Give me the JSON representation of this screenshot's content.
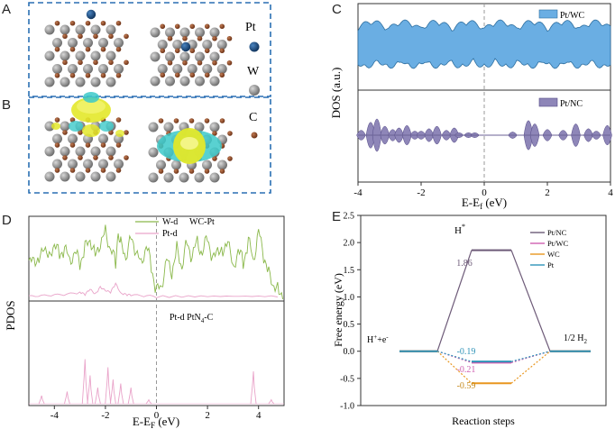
{
  "panels": {
    "a": "A",
    "b": "B",
    "c": "C",
    "d": "D",
    "e": "E"
  },
  "legend_ab": {
    "pt": "Pt",
    "w": "W",
    "c": "C",
    "colors": {
      "pt": "#1e4e82",
      "w": "#8a8a8a",
      "c": "#8b4a2b",
      "isosurface_yellow": "#e3e82a",
      "isosurface_cyan": "#3cc9c9"
    }
  },
  "chart_data": [
    {
      "type": "area",
      "panel": "C",
      "xlabel": "E-E",
      "xlabel_sub": "f",
      "xlabel_unit": " (eV)",
      "ylabel": "DOS (a.u.)",
      "xlim": [
        -4,
        4
      ],
      "xticks": [
        "-4",
        "-2",
        "0",
        "2",
        "4"
      ],
      "fermi_line": 0,
      "series": [
        {
          "name": "Pt/WC",
          "color": "#6aaee3",
          "description_values": "continuous band"
        },
        {
          "name": "Pt/NC",
          "color": "#8e86b8",
          "description_values": "discrete peaks"
        }
      ],
      "ptnc_peaks": [
        {
          "x": -3.9,
          "h": 0.3
        },
        {
          "x": -3.6,
          "h": 0.8
        },
        {
          "x": -3.4,
          "h": 1.0
        },
        {
          "x": -3.15,
          "h": 0.55
        },
        {
          "x": -2.9,
          "h": 0.35
        },
        {
          "x": -2.7,
          "h": 0.45
        },
        {
          "x": -2.45,
          "h": 0.6
        },
        {
          "x": -2.2,
          "h": 0.25
        },
        {
          "x": -2.0,
          "h": 0.25
        },
        {
          "x": -1.75,
          "h": 0.4
        },
        {
          "x": -1.5,
          "h": 0.55
        },
        {
          "x": -1.2,
          "h": 0.3
        },
        {
          "x": -0.95,
          "h": 0.45
        },
        {
          "x": -0.8,
          "h": 0.15
        },
        {
          "x": -0.5,
          "h": 0.15
        },
        {
          "x": -0.3,
          "h": 0.15
        },
        {
          "x": 0.9,
          "h": 0.2
        },
        {
          "x": 1.4,
          "h": 0.9
        },
        {
          "x": 1.6,
          "h": 0.7
        },
        {
          "x": 2.0,
          "h": 0.35
        },
        {
          "x": 2.5,
          "h": 0.3
        },
        {
          "x": 2.9,
          "h": 0.7
        },
        {
          "x": 3.3,
          "h": 0.4
        },
        {
          "x": 3.55,
          "h": 0.25
        },
        {
          "x": 3.9,
          "h": 0.6
        }
      ]
    },
    {
      "type": "line",
      "panel": "D",
      "xlabel": "E-E",
      "xlabel_sub": "F",
      "xlabel_unit": " (eV)",
      "ylabel": "PDOS",
      "xlim": [
        -5,
        5
      ],
      "xticks": [
        "-4",
        "-2",
        "0",
        "2",
        "4"
      ],
      "tick_values": [
        -4,
        -2,
        0,
        2,
        4
      ],
      "upper_title": "WC-Pt",
      "lower_title": "Pt-d PtN",
      "lower_title_sub": "4",
      "lower_title_suffix": "-C",
      "series": [
        {
          "name": "W-d",
          "color": "#8ab84a"
        },
        {
          "name": "Pt-d",
          "color": "#e9a3c9"
        }
      ],
      "w_d": [
        [
          -5,
          0.45
        ],
        [
          -4.8,
          0.6
        ],
        [
          -4.6,
          0.5
        ],
        [
          -4.4,
          0.75
        ],
        [
          -4.2,
          0.55
        ],
        [
          -4.0,
          0.8
        ],
        [
          -3.8,
          0.6
        ],
        [
          -3.6,
          0.7
        ],
        [
          -3.4,
          0.55
        ],
        [
          -3.2,
          0.65
        ],
        [
          -3.0,
          0.5
        ],
        [
          -2.8,
          0.7
        ],
        [
          -2.6,
          0.85
        ],
        [
          -2.4,
          0.6
        ],
        [
          -2.2,
          0.75
        ],
        [
          -2.0,
          0.95
        ],
        [
          -1.8,
          0.7
        ],
        [
          -1.6,
          0.5
        ],
        [
          -1.5,
          0.95
        ],
        [
          -1.4,
          0.75
        ],
        [
          -1.2,
          0.6
        ],
        [
          -1.0,
          0.85
        ],
        [
          -0.8,
          0.65
        ],
        [
          -0.6,
          0.5
        ],
        [
          -0.4,
          0.75
        ],
        [
          -0.2,
          0.45
        ],
        [
          0.0,
          0.1
        ],
        [
          0.2,
          0.2
        ],
        [
          0.4,
          0.55
        ],
        [
          0.6,
          0.35
        ],
        [
          0.8,
          0.7
        ],
        [
          1.0,
          0.45
        ],
        [
          1.2,
          0.8
        ],
        [
          1.4,
          0.55
        ],
        [
          1.6,
          0.85
        ],
        [
          1.8,
          0.6
        ],
        [
          2.0,
          0.9
        ],
        [
          2.2,
          0.5
        ],
        [
          2.4,
          0.75
        ],
        [
          2.6,
          0.6
        ],
        [
          2.8,
          0.85
        ],
        [
          3.0,
          0.4
        ],
        [
          3.2,
          0.7
        ],
        [
          3.4,
          0.5
        ],
        [
          3.6,
          0.8
        ],
        [
          3.8,
          0.55
        ],
        [
          4.0,
          0.95
        ],
        [
          4.2,
          0.6
        ],
        [
          4.4,
          0.35
        ],
        [
          4.6,
          0.2
        ],
        [
          4.8,
          0.1
        ],
        [
          5.0,
          0.05
        ]
      ],
      "pt_d_upper": [
        [
          -5,
          0.02
        ],
        [
          -4.5,
          0.03
        ],
        [
          -4.0,
          0.04
        ],
        [
          -3.5,
          0.05
        ],
        [
          -3.0,
          0.08
        ],
        [
          -2.8,
          0.05
        ],
        [
          -2.6,
          0.12
        ],
        [
          -2.4,
          0.05
        ],
        [
          -2.2,
          0.15
        ],
        [
          -2.0,
          0.1
        ],
        [
          -1.8,
          0.08
        ],
        [
          -1.6,
          0.2
        ],
        [
          -1.4,
          0.06
        ],
        [
          -1.2,
          0.05
        ],
        [
          -1.0,
          0.04
        ],
        [
          -0.5,
          0.03
        ],
        [
          0.0,
          0.02
        ],
        [
          1.0,
          0.02
        ],
        [
          2.0,
          0.02
        ],
        [
          3.0,
          0.02
        ],
        [
          4.0,
          0.02
        ],
        [
          5.0,
          0.02
        ]
      ],
      "pt_d_lower_peaks": [
        {
          "x": -4.5,
          "h": 0.1
        },
        {
          "x": -3.5,
          "h": 0.15
        },
        {
          "x": -2.8,
          "h": 0.55
        },
        {
          "x": -2.6,
          "h": 0.35
        },
        {
          "x": -2.3,
          "h": 0.2
        },
        {
          "x": -1.9,
          "h": 0.45
        },
        {
          "x": -1.7,
          "h": 0.3
        },
        {
          "x": -1.4,
          "h": 0.25
        },
        {
          "x": -1.0,
          "h": 0.2
        },
        {
          "x": -0.3,
          "h": 0.05
        },
        {
          "x": 3.8,
          "h": 0.4
        },
        {
          "x": 4.5,
          "h": 0.05
        }
      ]
    },
    {
      "type": "line",
      "panel": "E",
      "xlabel": "Reaction steps",
      "ylabel": "Free energy (eV)",
      "ylim": [
        -1.0,
        2.5
      ],
      "yticks": [
        "-1.0",
        "-0.5",
        "0.0",
        "0.5",
        "1.0",
        "1.5",
        "2.0",
        "2.5"
      ],
      "ytick_values": [
        -1.0,
        -0.5,
        0.0,
        0.5,
        1.0,
        1.5,
        2.0,
        2.5
      ],
      "states": [
        "H+e",
        "H*",
        "1/2 H2"
      ],
      "series": [
        {
          "name": "Pt/NC",
          "color": "#6d5a78",
          "values": [
            0,
            1.86,
            0
          ]
        },
        {
          "name": "Pt/WC",
          "color": "#cf5fb0",
          "values": [
            0,
            -0.21,
            0
          ]
        },
        {
          "name": "WC",
          "color": "#e8961e",
          "values": [
            0,
            -0.59,
            0
          ]
        },
        {
          "name": "Pt",
          "color": "#2f93b8",
          "values": [
            0,
            -0.19,
            0
          ]
        }
      ],
      "data_labels": [
        "1.86",
        "-0.19",
        "-0.21",
        "-0.59"
      ]
    }
  ],
  "labels_e": {
    "h_star": "H",
    "star": "*",
    "left_state": "H",
    "left_plus": "+",
    "left_e": "+e",
    "left_minus": "-",
    "right_state": "1/2 H",
    "right_sub": "2"
  }
}
